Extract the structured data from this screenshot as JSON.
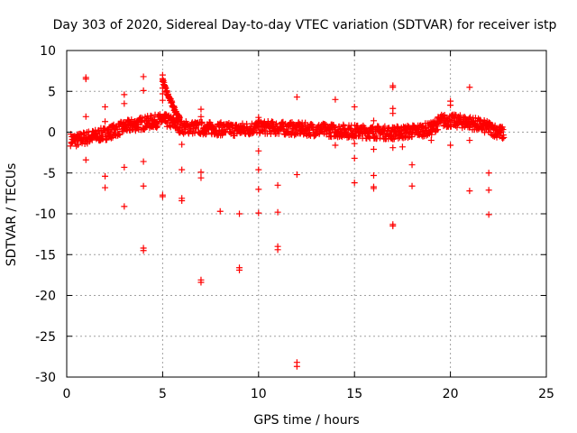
{
  "chart_data": {
    "type": "scatter",
    "title": "Day 303 of 2020, Sidereal Day-to-day VTEC variation (SDTVAR) for receiver istp",
    "xlabel": "GPS time / hours",
    "ylabel": "SDTVAR / TECUs",
    "xlim": [
      0,
      25
    ],
    "ylim": [
      -30,
      10
    ],
    "x_ticks": [
      0,
      5,
      10,
      15,
      20,
      25
    ],
    "x_tick_labels": [
      "0",
      "5",
      "10",
      "15",
      "20",
      "25"
    ],
    "y_ticks": [
      10,
      5,
      0,
      -5,
      -10,
      -15,
      -20,
      -25,
      -30
    ],
    "y_tick_labels": [
      "10",
      "5",
      "0",
      "-5",
      "-10",
      "-15",
      "-20",
      "-25",
      "-30"
    ],
    "grid": true,
    "marker": "+",
    "series_color": "#ff0000",
    "series": [
      {
        "name": "SDTVAR",
        "points": [
          [
            1.0,
            6.7
          ],
          [
            1.0,
            6.5
          ],
          [
            1.0,
            1.9
          ],
          [
            1.0,
            -3.4
          ],
          [
            2.0,
            3.1
          ],
          [
            2.0,
            1.3
          ],
          [
            2.0,
            -5.4
          ],
          [
            2.0,
            -6.8
          ],
          [
            3.0,
            4.6
          ],
          [
            3.0,
            3.5
          ],
          [
            3.0,
            -4.3
          ],
          [
            3.0,
            -9.1
          ],
          [
            4.0,
            6.8
          ],
          [
            4.0,
            5.1
          ],
          [
            4.0,
            -3.6
          ],
          [
            4.0,
            -6.6
          ],
          [
            4.0,
            -14.2
          ],
          [
            4.0,
            -14.5
          ],
          [
            5.0,
            7.0
          ],
          [
            5.0,
            6.2
          ],
          [
            5.0,
            5.4
          ],
          [
            5.0,
            4.7
          ],
          [
            5.0,
            3.9
          ],
          [
            5.0,
            -7.7
          ],
          [
            5.0,
            -7.9
          ],
          [
            6.0,
            -1.5
          ],
          [
            6.0,
            -4.6
          ],
          [
            6.0,
            -8.1
          ],
          [
            6.0,
            -8.4
          ],
          [
            7.0,
            2.8
          ],
          [
            7.0,
            1.9
          ],
          [
            7.0,
            -4.9
          ],
          [
            7.0,
            -5.6
          ],
          [
            7.0,
            -18.1
          ],
          [
            7.0,
            -18.4
          ],
          [
            8.0,
            -9.7
          ],
          [
            9.0,
            -10.0
          ],
          [
            9.0,
            -16.6
          ],
          [
            9.0,
            -16.9
          ],
          [
            10.0,
            1.8
          ],
          [
            10.0,
            -2.3
          ],
          [
            10.0,
            -4.6
          ],
          [
            10.0,
            -7.0
          ],
          [
            10.0,
            -9.9
          ],
          [
            11.0,
            -6.5
          ],
          [
            11.0,
            -9.8
          ],
          [
            11.0,
            -14.0
          ],
          [
            11.0,
            -14.4
          ],
          [
            12.0,
            4.3
          ],
          [
            12.0,
            -5.2
          ],
          [
            12.0,
            -28.2
          ],
          [
            12.0,
            -28.7
          ],
          [
            14.0,
            4.0
          ],
          [
            14.0,
            -1.6
          ],
          [
            15.0,
            3.1
          ],
          [
            15.0,
            -1.4
          ],
          [
            15.0,
            -3.2
          ],
          [
            15.0,
            -6.2
          ],
          [
            16.0,
            1.4
          ],
          [
            16.0,
            -2.1
          ],
          [
            16.0,
            -5.3
          ],
          [
            16.0,
            -6.7
          ],
          [
            16.0,
            -6.9
          ],
          [
            17.0,
            5.7
          ],
          [
            17.0,
            5.5
          ],
          [
            17.0,
            2.9
          ],
          [
            17.0,
            2.3
          ],
          [
            17.0,
            -1.9
          ],
          [
            17.0,
            -11.3
          ],
          [
            17.0,
            -11.5
          ],
          [
            17.5,
            -1.8
          ],
          [
            18.0,
            -4.0
          ],
          [
            18.0,
            -6.6
          ],
          [
            19.0,
            0.7
          ],
          [
            19.0,
            -1.0
          ],
          [
            20.0,
            3.8
          ],
          [
            20.0,
            3.3
          ],
          [
            20.0,
            -1.6
          ],
          [
            21.0,
            5.5
          ],
          [
            21.0,
            -1.0
          ],
          [
            21.0,
            -7.2
          ],
          [
            22.0,
            1.2
          ],
          [
            22.0,
            -5.0
          ],
          [
            22.0,
            -7.1
          ],
          [
            22.0,
            -10.1
          ]
        ],
        "dense_band": [
          [
            0.2,
            -0.9
          ],
          [
            0.5,
            -1.0
          ],
          [
            0.8,
            -0.8
          ],
          [
            1.2,
            -0.6
          ],
          [
            1.6,
            -0.4
          ],
          [
            2.0,
            -0.2
          ],
          [
            2.5,
            0.2
          ],
          [
            3.0,
            0.6
          ],
          [
            3.5,
            0.9
          ],
          [
            4.0,
            1.1
          ],
          [
            4.5,
            1.3
          ],
          [
            5.0,
            1.5
          ],
          [
            5.5,
            1.2
          ],
          [
            6.0,
            0.6
          ],
          [
            7.0,
            0.5
          ],
          [
            8.0,
            0.4
          ],
          [
            9.0,
            0.3
          ],
          [
            10.0,
            0.6
          ],
          [
            11.0,
            0.5
          ],
          [
            12.0,
            0.4
          ],
          [
            13.0,
            0.3
          ],
          [
            14.0,
            0.2
          ],
          [
            15.0,
            0.1
          ],
          [
            16.0,
            0.0
          ],
          [
            17.0,
            -0.1
          ],
          [
            17.5,
            0.0
          ],
          [
            18.0,
            0.1
          ],
          [
            19.0,
            0.4
          ],
          [
            19.5,
            1.4
          ],
          [
            20.0,
            1.4
          ],
          [
            21.0,
            1.2
          ],
          [
            22.0,
            0.5
          ],
          [
            22.8,
            -0.2
          ]
        ],
        "spike_after_5h": [
          [
            5.0,
            6.5
          ],
          [
            5.1,
            5.6
          ],
          [
            5.2,
            5.0
          ],
          [
            5.3,
            4.4
          ],
          [
            5.4,
            3.9
          ],
          [
            5.5,
            3.4
          ],
          [
            5.6,
            2.9
          ],
          [
            5.7,
            2.5
          ],
          [
            5.8,
            2.0
          ],
          [
            5.9,
            1.6
          ]
        ]
      }
    ]
  }
}
